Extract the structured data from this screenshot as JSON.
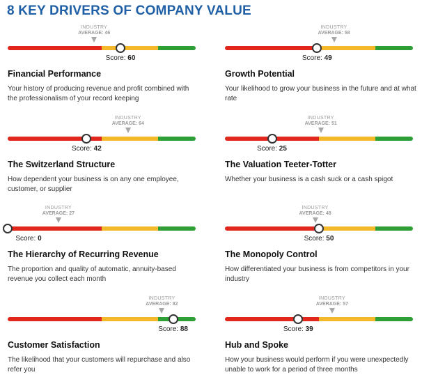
{
  "page_title": "8 KEY DRIVERS OF COMPANY VALUE",
  "colors": {
    "title": "#1f5fa6",
    "red": "#e0261d",
    "yellow": "#f4b92a",
    "green": "#2e9e36"
  },
  "industry_label": "INDUSTRY",
  "average_prefix": "AVERAGE:",
  "score_prefix": "Score:",
  "drivers": [
    {
      "name": "Financial Performance",
      "description": "Your history of producing revenue and profit combined with the professionalism of your record keeping",
      "score": 60,
      "industry_average": 46,
      "score_text": "60",
      "average_text": "46"
    },
    {
      "name": "Growth Potential",
      "description": "Your likelihood to grow your business in the future and at what rate",
      "score": 49,
      "industry_average": 58,
      "score_text": "49",
      "average_text": "58"
    },
    {
      "name": "The Switzerland Structure",
      "description": "How dependent your business is on any one employee, customer, or supplier",
      "score": 42,
      "industry_average": 64,
      "score_text": "42",
      "average_text": "64"
    },
    {
      "name": "The Valuation Teeter-Totter",
      "description": "Whether your business is a cash suck or a cash spigot",
      "score": 25,
      "industry_average": 51,
      "score_text": "25",
      "average_text": "51"
    },
    {
      "name": "The Hierarchy of Recurring Revenue",
      "description": "The proportion and quality of automatic, annuity-based revenue you collect each month",
      "score": 0,
      "industry_average": 27,
      "score_text": "0",
      "average_text": "27"
    },
    {
      "name": "The Monopoly Control",
      "description": "How differentiated your business is from competitors in your industry",
      "score": 50,
      "industry_average": 48,
      "score_text": "50",
      "average_text": "48"
    },
    {
      "name": "Customer Satisfaction",
      "description": "The likelihood that your customers will repurchase and also refer you",
      "score": 88,
      "industry_average": 82,
      "score_text": "88",
      "average_text": "82"
    },
    {
      "name": "Hub and Spoke",
      "description": "How your business would perform if you were unexpectedly unable to work for a period of three months",
      "score": 39,
      "industry_average": 57,
      "score_text": "39",
      "average_text": "57"
    }
  ]
}
